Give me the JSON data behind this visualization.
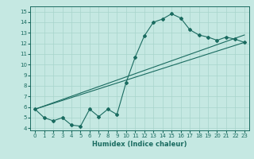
{
  "xlabel": "Humidex (Indice chaleur)",
  "xlim": [
    -0.5,
    23.5
  ],
  "ylim": [
    3.8,
    15.5
  ],
  "yticks": [
    4,
    5,
    6,
    7,
    8,
    9,
    10,
    11,
    12,
    13,
    14,
    15
  ],
  "xticks": [
    0,
    1,
    2,
    3,
    4,
    5,
    6,
    7,
    8,
    9,
    10,
    11,
    12,
    13,
    14,
    15,
    16,
    17,
    18,
    19,
    20,
    21,
    22,
    23
  ],
  "bg_color": "#c5e8e2",
  "line_color": "#1a6b60",
  "grid_color": "#a8d4cc",
  "main_line": {
    "x": [
      0,
      1,
      2,
      3,
      4,
      5,
      6,
      7,
      8,
      9,
      10,
      11,
      12,
      13,
      14,
      15,
      16,
      17,
      18,
      19,
      20,
      21,
      22,
      23
    ],
    "y": [
      5.8,
      5.0,
      4.7,
      5.0,
      4.3,
      4.2,
      5.8,
      5.1,
      5.8,
      5.3,
      8.3,
      10.7,
      12.7,
      14.0,
      14.3,
      14.8,
      14.4,
      13.3,
      12.8,
      12.6,
      12.3,
      12.6,
      12.4,
      12.1
    ]
  },
  "line2": {
    "x": [
      0,
      23
    ],
    "y": [
      5.8,
      12.1
    ]
  },
  "line3": {
    "x": [
      0,
      23
    ],
    "y": [
      5.8,
      12.8
    ]
  }
}
